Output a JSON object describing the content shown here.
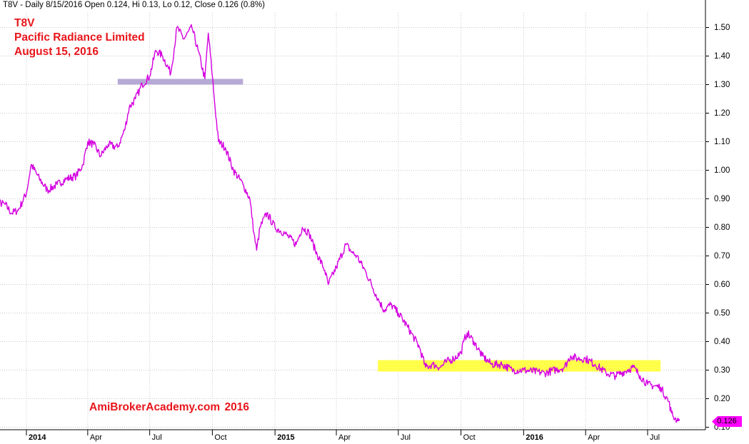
{
  "header_text": "T8V - Daily 8/15/2016 Open 0.124, Hi 0.13, Lo 0.12, Close 0.126 (0.8%)",
  "annotation": {
    "ticker": "T8V",
    "company": "Pacific Radiance Limited",
    "date": "August 15, 2016"
  },
  "watermark": "AmiBrokerAcademy.com   2016",
  "last_price_label": "0.126",
  "colors": {
    "price_line": "#d400e0",
    "annotation_text": "#e8151b",
    "resistance_zone": "#b7a9d6",
    "support_zone": "#ffff4a",
    "grid": "#c8c8c8",
    "price_tag": "#ff00ff"
  },
  "chart_data": {
    "type": "line",
    "title": "T8V - Daily 8/15/2016 Open 0.124, Hi 0.13, Lo 0.12, Close 0.126 (0.8%)",
    "xlabel": "",
    "ylabel": "",
    "ylim": [
      0.1,
      1.53
    ],
    "y_ticks": [
      0.1,
      0.2,
      0.3,
      0.4,
      0.5,
      0.6,
      0.7,
      0.8,
      0.9,
      1.0,
      1.1,
      1.2,
      1.3,
      1.4,
      1.5
    ],
    "y_tick_labels": [
      "0.10",
      "0.20",
      "0.30",
      "0.40",
      "0.50",
      "0.60",
      "0.70",
      "0.80",
      "0.90",
      "1.00",
      "1.10",
      "1.20",
      "1.30",
      "1.40",
      "1.50"
    ],
    "x_ticks": [
      {
        "date": "2014-01",
        "label": "2014",
        "major": true
      },
      {
        "date": "2014-04",
        "label": "Apr",
        "major": false
      },
      {
        "date": "2014-07",
        "label": "Jul",
        "major": false
      },
      {
        "date": "2014-10",
        "label": "Oct",
        "major": false
      },
      {
        "date": "2015-01",
        "label": "2015",
        "major": true
      },
      {
        "date": "2015-04",
        "label": "Apr",
        "major": false
      },
      {
        "date": "2015-07",
        "label": "Jul",
        "major": false
      },
      {
        "date": "2015-10",
        "label": "Oct",
        "major": false
      },
      {
        "date": "2016-01",
        "label": "2016",
        "major": true
      },
      {
        "date": "2016-04",
        "label": "Apr",
        "major": false
      },
      {
        "date": "2016-07",
        "label": "Jul",
        "major": false
      }
    ],
    "x_range": [
      "2013-11-01",
      "2016-08-31"
    ],
    "grid": true,
    "legend": "none",
    "series": [
      {
        "values": [
          [
            "2013-11-01",
            0.88
          ],
          [
            "2013-11-15",
            0.89
          ],
          [
            "2013-12-01",
            0.88
          ],
          [
            "2013-12-10",
            0.85
          ],
          [
            "2013-12-20",
            0.86
          ],
          [
            "2014-01-01",
            0.92
          ],
          [
            "2014-01-08",
            1.02
          ],
          [
            "2014-01-20",
            0.97
          ],
          [
            "2014-02-01",
            0.93
          ],
          [
            "2014-02-15",
            0.95
          ],
          [
            "2014-03-01",
            0.97
          ],
          [
            "2014-03-15",
            0.98
          ],
          [
            "2014-03-25",
            1.02
          ],
          [
            "2014-04-01",
            1.1
          ],
          [
            "2014-04-10",
            1.09
          ],
          [
            "2014-04-20",
            1.05
          ],
          [
            "2014-05-01",
            1.09
          ],
          [
            "2014-05-15",
            1.08
          ],
          [
            "2014-05-25",
            1.14
          ],
          [
            "2014-06-01",
            1.22
          ],
          [
            "2014-06-10",
            1.25
          ],
          [
            "2014-06-20",
            1.3
          ],
          [
            "2014-07-01",
            1.33
          ],
          [
            "2014-07-10",
            1.42
          ],
          [
            "2014-07-20",
            1.4
          ],
          [
            "2014-08-01",
            1.34
          ],
          [
            "2014-08-10",
            1.5
          ],
          [
            "2014-08-20",
            1.46
          ],
          [
            "2014-09-01",
            1.5
          ],
          [
            "2014-09-10",
            1.42
          ],
          [
            "2014-09-20",
            1.32
          ],
          [
            "2014-09-25",
            1.48
          ],
          [
            "2014-10-01",
            1.33
          ],
          [
            "2014-10-05",
            1.22
          ],
          [
            "2014-10-10",
            1.1
          ],
          [
            "2014-10-20",
            1.08
          ],
          [
            "2014-11-01",
            1.0
          ],
          [
            "2014-11-15",
            0.95
          ],
          [
            "2014-11-25",
            0.9
          ],
          [
            "2014-12-01",
            0.78
          ],
          [
            "2014-12-05",
            0.72
          ],
          [
            "2014-12-10",
            0.8
          ],
          [
            "2014-12-20",
            0.85
          ],
          [
            "2015-01-01",
            0.8
          ],
          [
            "2015-01-15",
            0.78
          ],
          [
            "2015-02-01",
            0.74
          ],
          [
            "2015-02-10",
            0.8
          ],
          [
            "2015-02-20",
            0.78
          ],
          [
            "2015-03-01",
            0.72
          ],
          [
            "2015-03-15",
            0.65
          ],
          [
            "2015-03-20",
            0.6
          ],
          [
            "2015-04-01",
            0.66
          ],
          [
            "2015-04-15",
            0.74
          ],
          [
            "2015-04-25",
            0.71
          ],
          [
            "2015-05-01",
            0.7
          ],
          [
            "2015-05-15",
            0.64
          ],
          [
            "2015-06-01",
            0.55
          ],
          [
            "2015-06-10",
            0.51
          ],
          [
            "2015-06-20",
            0.53
          ],
          [
            "2015-07-01",
            0.5
          ],
          [
            "2015-07-15",
            0.45
          ],
          [
            "2015-08-01",
            0.38
          ],
          [
            "2015-08-10",
            0.31
          ],
          [
            "2015-08-20",
            0.32
          ],
          [
            "2015-09-01",
            0.31
          ],
          [
            "2015-09-10",
            0.33
          ],
          [
            "2015-09-20",
            0.34
          ],
          [
            "2015-10-01",
            0.36
          ],
          [
            "2015-10-05",
            0.4
          ],
          [
            "2015-10-10",
            0.43
          ],
          [
            "2015-10-20",
            0.4
          ],
          [
            "2015-11-01",
            0.35
          ],
          [
            "2015-11-15",
            0.32
          ],
          [
            "2015-12-01",
            0.32
          ],
          [
            "2015-12-15",
            0.3
          ],
          [
            "2016-01-01",
            0.3
          ],
          [
            "2016-02-01",
            0.29
          ],
          [
            "2016-03-01",
            0.31
          ],
          [
            "2016-03-10",
            0.35
          ],
          [
            "2016-03-20",
            0.34
          ],
          [
            "2016-04-01",
            0.34
          ],
          [
            "2016-04-15",
            0.32
          ],
          [
            "2016-05-01",
            0.29
          ],
          [
            "2016-05-15",
            0.28
          ],
          [
            "2016-06-01",
            0.3
          ],
          [
            "2016-06-10",
            0.31
          ],
          [
            "2016-06-20",
            0.28
          ],
          [
            "2016-07-01",
            0.25
          ],
          [
            "2016-07-20",
            0.24
          ],
          [
            "2016-08-01",
            0.19
          ],
          [
            "2016-08-05",
            0.15
          ],
          [
            "2016-08-10",
            0.13
          ],
          [
            "2016-08-15",
            0.126
          ]
        ]
      }
    ],
    "zones": [
      {
        "from": "2014-05-15",
        "to": "2014-11-15",
        "y": 1.31,
        "color": "#b7a9d6"
      },
      {
        "from": "2015-06-01",
        "to": "2016-07-20",
        "y_low": 0.295,
        "y_high": 0.335,
        "color": "#ffff4a"
      }
    ],
    "last_value": 0.126
  }
}
